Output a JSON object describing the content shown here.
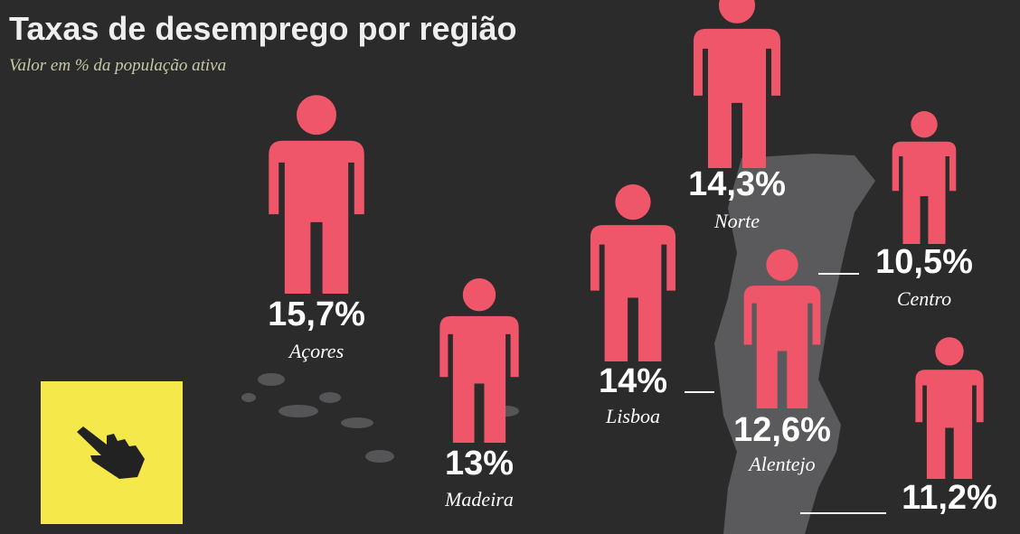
{
  "chart_data": {
    "type": "pictogram",
    "title": "Taxas de desemprego por região",
    "subtitle": "Valor em % da população ativa",
    "categories": [
      "Açores",
      "Madeira",
      "Lisboa",
      "Norte",
      "Centro",
      "Alentejo",
      null
    ],
    "values": [
      15.7,
      13,
      14,
      14.3,
      10.5,
      12.6,
      11.2
    ],
    "value_labels": [
      "15,7%",
      "13%",
      "14%",
      "14,3%",
      "10,5%",
      "12,6%",
      "11,2%"
    ],
    "color": "#f0566a"
  }
}
